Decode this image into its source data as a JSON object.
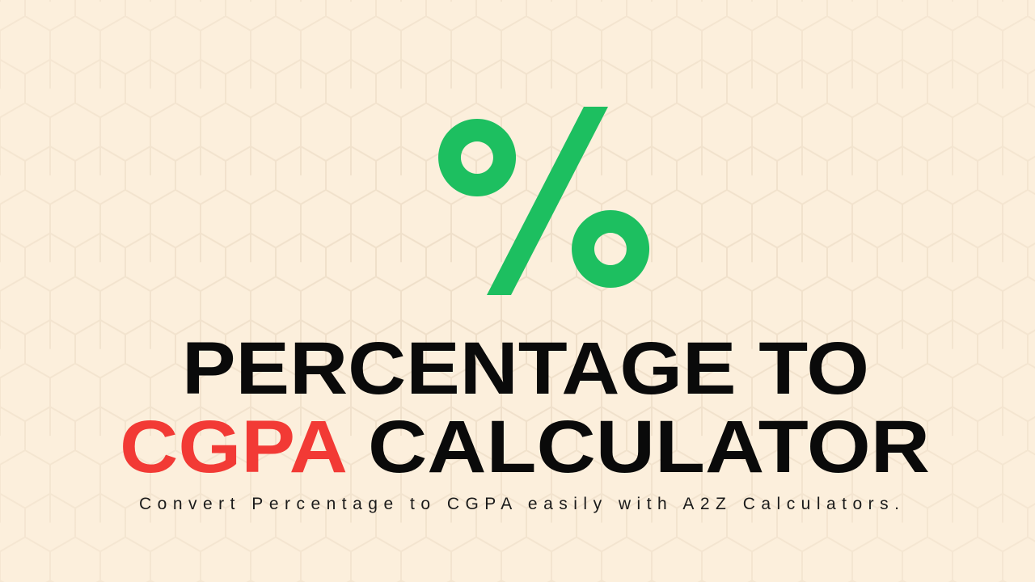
{
  "banner": {
    "title_line1": "PERCENTAGE TO",
    "title_highlight": "CGPA",
    "title_rest": "CALCULATOR",
    "subtitle": "Convert Percentage to CGPA easily with A2Z Calculators."
  }
}
